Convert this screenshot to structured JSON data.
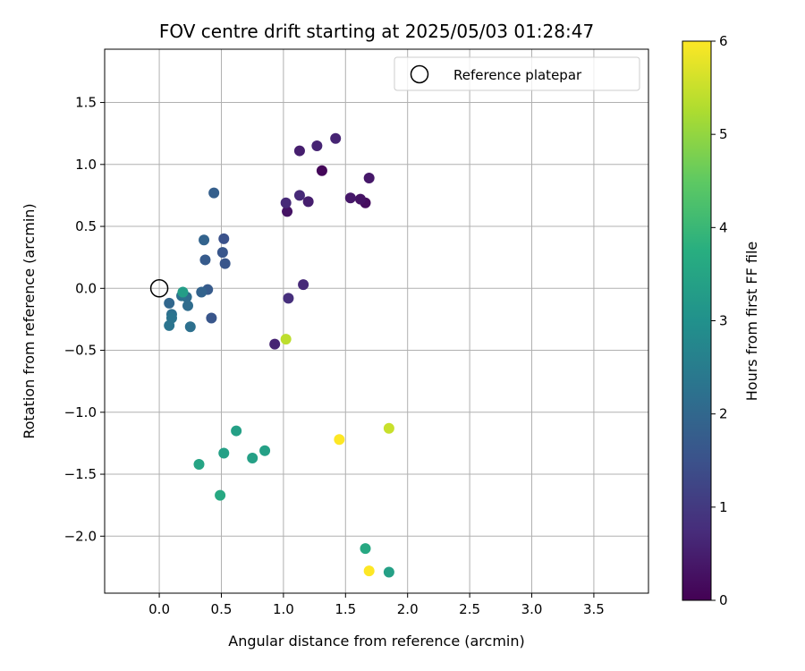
{
  "chart_data": {
    "type": "scatter",
    "title": "FOV centre drift starting at 2025/05/03 01:28:47",
    "xlabel": "Angular distance from reference (arcmin)",
    "ylabel": "Rotation from reference (arcmin)",
    "xlim": [
      -0.44,
      3.94
    ],
    "ylim": [
      -2.46,
      1.93
    ],
    "xticks": [
      "0.0",
      "0.5",
      "1.0",
      "1.5",
      "2.0",
      "2.5",
      "3.0",
      "3.5"
    ],
    "xtick_values": [
      0.0,
      0.5,
      1.0,
      1.5,
      2.0,
      2.5,
      3.0,
      3.5
    ],
    "yticks": [
      "1.5",
      "1.0",
      "0.5",
      "0.0",
      "−0.5",
      "−1.0",
      "−1.5",
      "−2.0"
    ],
    "ytick_values": [
      1.5,
      1.0,
      0.5,
      0.0,
      -0.5,
      -1.0,
      -1.5,
      -2.0
    ],
    "grid": true,
    "legend": {
      "label": "Reference platepar",
      "position": "top-right"
    },
    "reference_point": {
      "x": 0.0,
      "y": 0.0
    },
    "colorbar": {
      "label": "Hours from first FF file",
      "range": [
        0,
        6
      ],
      "ticks": [
        "0",
        "1",
        "2",
        "3",
        "4",
        "5",
        "6"
      ],
      "tick_values": [
        0,
        1,
        2,
        3,
        4,
        5,
        6
      ],
      "colormap": "viridis"
    },
    "points": [
      {
        "x": 1.31,
        "y": 0.95,
        "c": 0.1
      },
      {
        "x": 1.66,
        "y": 0.69,
        "c": 0.2
      },
      {
        "x": 1.03,
        "y": 0.62,
        "c": 0.3
      },
      {
        "x": 1.62,
        "y": 0.72,
        "c": 0.3
      },
      {
        "x": 1.69,
        "y": 0.89,
        "c": 0.4
      },
      {
        "x": 1.54,
        "y": 0.73,
        "c": 0.4
      },
      {
        "x": 1.2,
        "y": 0.7,
        "c": 0.5
      },
      {
        "x": 1.13,
        "y": 1.11,
        "c": 0.5
      },
      {
        "x": 1.27,
        "y": 1.15,
        "c": 0.6
      },
      {
        "x": 1.42,
        "y": 1.21,
        "c": 0.6
      },
      {
        "x": 1.02,
        "y": 0.69,
        "c": 0.7
      },
      {
        "x": 1.13,
        "y": 0.75,
        "c": 0.7
      },
      {
        "x": 0.93,
        "y": -0.45,
        "c": 0.6
      },
      {
        "x": 1.16,
        "y": 0.03,
        "c": 0.7
      },
      {
        "x": 1.04,
        "y": -0.08,
        "c": 0.8
      },
      {
        "x": 0.52,
        "y": 0.4,
        "c": 1.5
      },
      {
        "x": 0.51,
        "y": 0.29,
        "c": 1.6
      },
      {
        "x": 0.37,
        "y": 0.23,
        "c": 1.7
      },
      {
        "x": 0.53,
        "y": 0.2,
        "c": 1.6
      },
      {
        "x": 0.44,
        "y": 0.77,
        "c": 1.8
      },
      {
        "x": 0.36,
        "y": 0.39,
        "c": 1.9
      },
      {
        "x": 0.42,
        "y": -0.24,
        "c": 1.6
      },
      {
        "x": 0.39,
        "y": -0.01,
        "c": 1.7
      },
      {
        "x": 0.34,
        "y": -0.03,
        "c": 1.9
      },
      {
        "x": 0.08,
        "y": -0.12,
        "c": 2.0
      },
      {
        "x": 0.22,
        "y": -0.07,
        "c": 2.1
      },
      {
        "x": 0.18,
        "y": -0.06,
        "c": 2.2
      },
      {
        "x": 0.23,
        "y": -0.14,
        "c": 2.1
      },
      {
        "x": 0.1,
        "y": -0.21,
        "c": 2.2
      },
      {
        "x": 0.1,
        "y": -0.24,
        "c": 2.3
      },
      {
        "x": 0.08,
        "y": -0.3,
        "c": 2.3
      },
      {
        "x": 0.25,
        "y": -0.31,
        "c": 2.2
      },
      {
        "x": 0.19,
        "y": -0.03,
        "c": 3.3
      },
      {
        "x": 0.62,
        "y": -1.15,
        "c": 3.4
      },
      {
        "x": 0.52,
        "y": -1.33,
        "c": 3.4
      },
      {
        "x": 0.32,
        "y": -1.42,
        "c": 3.5
      },
      {
        "x": 0.75,
        "y": -1.37,
        "c": 3.4
      },
      {
        "x": 0.85,
        "y": -1.31,
        "c": 3.4
      },
      {
        "x": 0.49,
        "y": -1.67,
        "c": 3.6
      },
      {
        "x": 1.66,
        "y": -2.1,
        "c": 3.6
      },
      {
        "x": 1.85,
        "y": -2.29,
        "c": 3.4
      },
      {
        "x": 1.02,
        "y": -0.41,
        "c": 5.4
      },
      {
        "x": 1.85,
        "y": -1.13,
        "c": 5.5
      },
      {
        "x": 1.45,
        "y": -1.22,
        "c": 6.0
      },
      {
        "x": 1.69,
        "y": -2.28,
        "c": 6.0
      }
    ]
  }
}
